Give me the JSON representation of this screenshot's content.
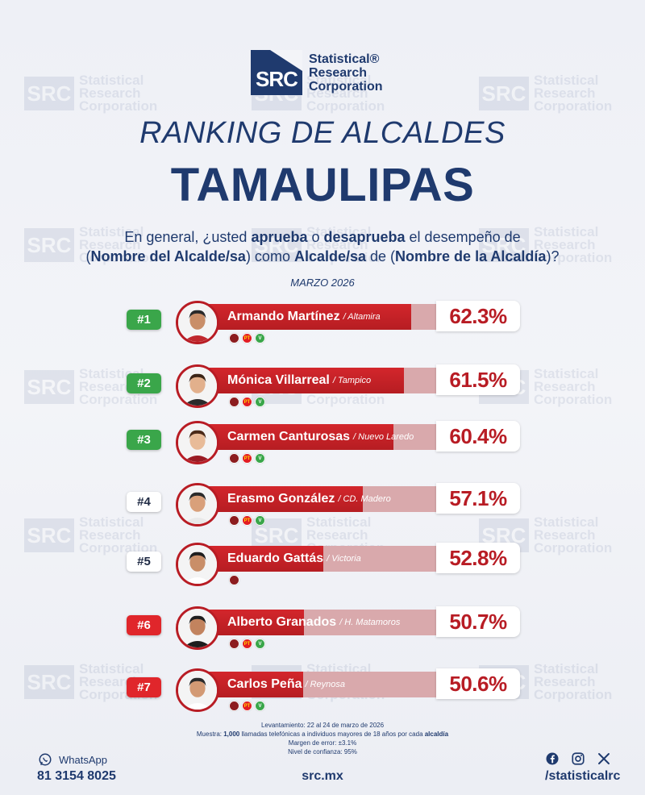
{
  "brand": {
    "logo_letters": "SRC",
    "logo_line1": "Statistical®",
    "logo_line2": "Research",
    "logo_line3": "Corporation"
  },
  "title_line1": "RANKING DE ALCALDES",
  "title_line2": "TAMAULIPAS",
  "question": {
    "p1": "En general, ¿usted ",
    "b1": "aprueba",
    "p2": " o ",
    "b2": "desaprueba",
    "p3": " el desempeño de",
    "p4": "(",
    "b3": "Nombre del Alcalde/sa",
    "p5": ") como ",
    "b4": "Alcalde/sa",
    "p6": " de (",
    "b5": "Nombre de la Alcaldía",
    "p7": ")?"
  },
  "date_label": "MARZO 2026",
  "colors": {
    "navy": "#1f3a6e",
    "bar_red": "#c8232a",
    "bar_track": "#d9a9ac",
    "rank_green": "#3aa64a",
    "rank_red": "#e0262b"
  },
  "chart_data": {
    "type": "bar",
    "orientation": "horizontal",
    "categories": [
      "Armando Martínez",
      "Mónica Villarreal",
      "Carmen Canturosas",
      "Erasmo González",
      "Eduardo Gattás",
      "Alberto Granados",
      "Carlos Peña"
    ],
    "values": [
      62.3,
      61.5,
      60.4,
      57.1,
      52.8,
      50.7,
      50.6
    ],
    "ylim": [
      0,
      100
    ],
    "rows": [
      {
        "rank": "#1",
        "rank_style": "green",
        "name": "Armando Martínez",
        "city": "/ Altamira",
        "value": 62.3,
        "label": "62.3%",
        "parties": [
          "morena",
          "pt",
          "pvem"
        ]
      },
      {
        "rank": "#2",
        "rank_style": "green",
        "name": "Mónica Villarreal",
        "city": "/ Tampico",
        "value": 61.5,
        "label": "61.5%",
        "parties": [
          "morena",
          "pt",
          "pvem"
        ]
      },
      {
        "rank": "#3",
        "rank_style": "green",
        "name": "Carmen Canturosas",
        "city": "/ Nuevo Laredo",
        "value": 60.4,
        "label": "60.4%",
        "parties": [
          "morena",
          "pt",
          "pvem"
        ]
      },
      {
        "rank": "#4",
        "rank_style": "white",
        "name": "Erasmo González",
        "city": "/ CD. Madero",
        "value": 57.1,
        "label": "57.1%",
        "parties": [
          "morena",
          "pt",
          "pvem"
        ]
      },
      {
        "rank": "#5",
        "rank_style": "white",
        "name": "Eduardo Gattás",
        "city": "/ Victoria",
        "value": 52.8,
        "label": "52.8%",
        "parties": [
          "morena"
        ]
      },
      {
        "rank": "#6",
        "rank_style": "red",
        "name": "Alberto Granados",
        "city": "/ H. Matamoros",
        "value": 50.7,
        "label": "50.7%",
        "parties": [
          "morena",
          "pt",
          "pvem"
        ]
      },
      {
        "rank": "#7",
        "rank_style": "red",
        "name": "Carlos Peña",
        "city": "/ Reynosa",
        "value": 50.6,
        "label": "50.6%",
        "parties": [
          "morena",
          "pt",
          "pvem"
        ]
      }
    ]
  },
  "footnotes": {
    "line1": "Levantamiento: 22 al 24 de marzo de 2026",
    "line2_pre": "Muestra: ",
    "line2_b1": "1,000",
    "line2_mid": " llamadas telefónicas a individuos mayores de 18 años por cada ",
    "line2_b2": "alcaldía",
    "line3": "Margen de error: ±3.1%",
    "line4": "Nivel de confianza: 95%"
  },
  "footer": {
    "whatsapp_label": "WhatsApp",
    "phone": "81 3154 8025",
    "site": "src.mx",
    "handle": "/statisticalrc",
    "icons": [
      "whatsapp-icon",
      "facebook-icon",
      "instagram-icon",
      "x-icon"
    ]
  }
}
